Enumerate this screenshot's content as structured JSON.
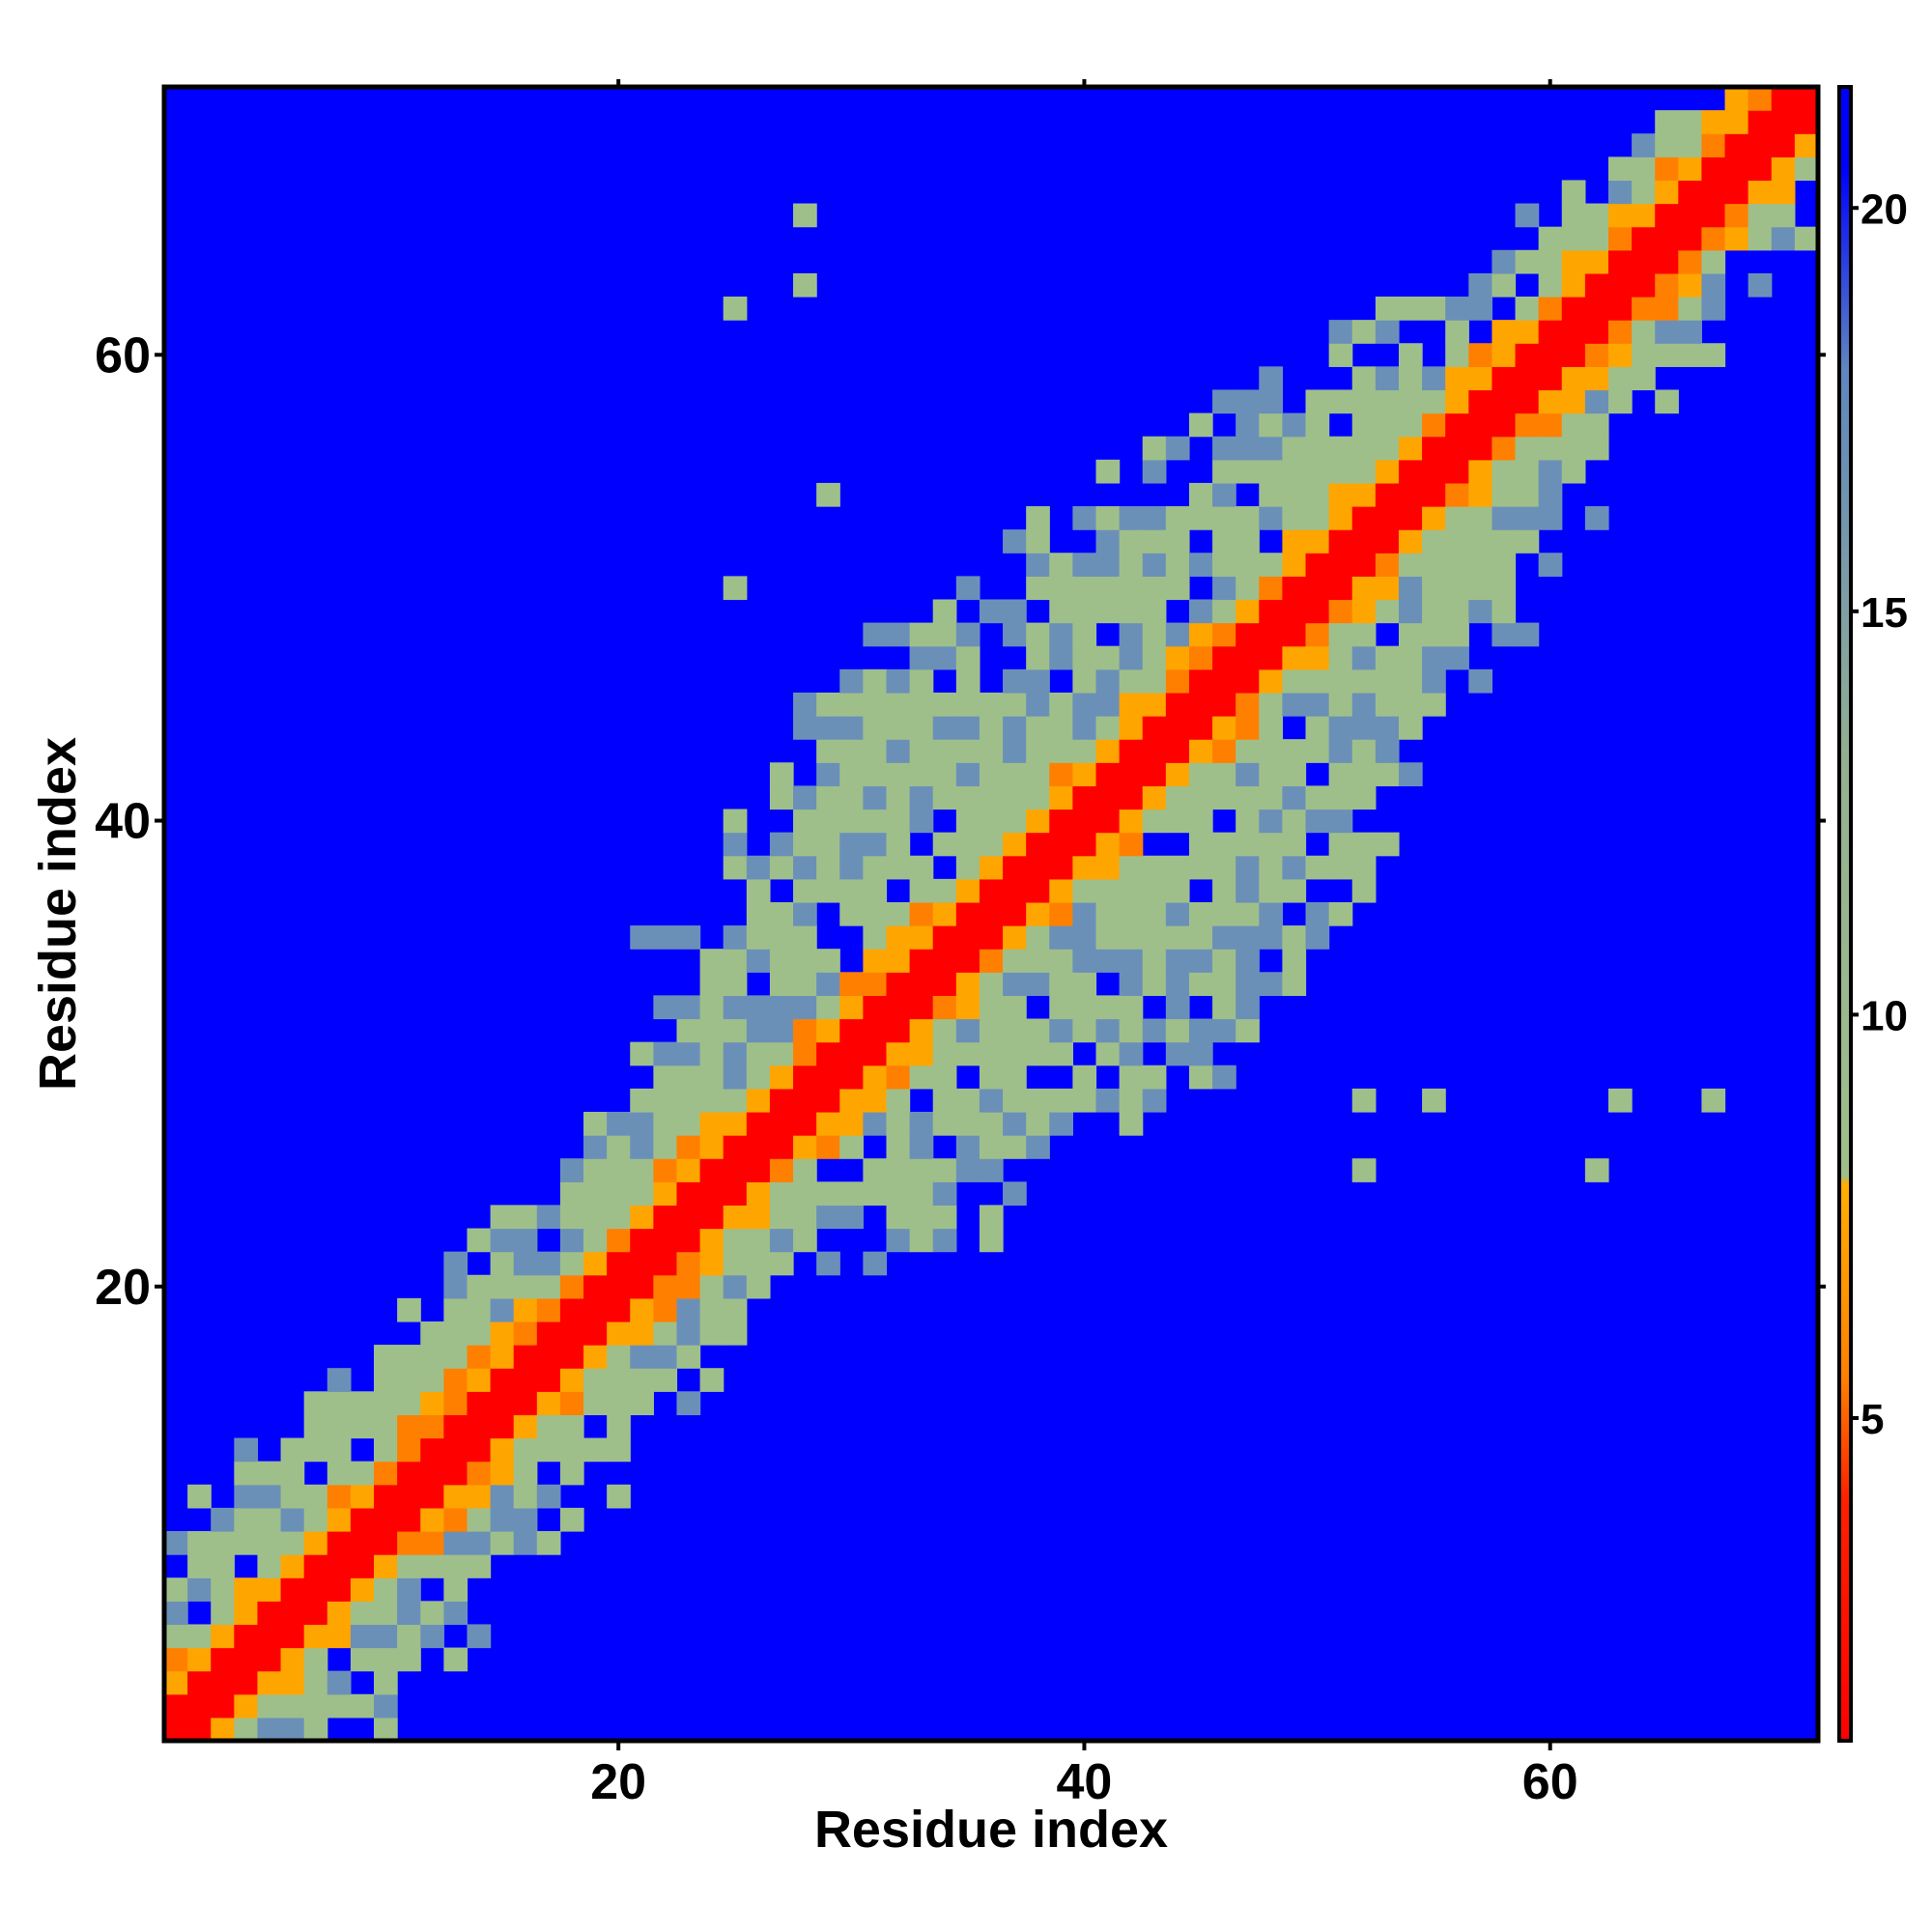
{
  "chart_data": {
    "type": "heatmap",
    "title": "",
    "xlabel": "Residue index",
    "ylabel": "Residue index",
    "n_residues": 71,
    "xlim": [
      1,
      71
    ],
    "ylim": [
      1,
      71
    ],
    "x_ticks": [
      20,
      40,
      60
    ],
    "y_ticks": [
      20,
      40,
      60
    ],
    "x_tick_labels": [
      "20",
      "40",
      "60"
    ],
    "y_tick_labels": [
      "20",
      "40",
      "60"
    ],
    "colorbar": {
      "ticks": [
        5,
        10,
        15,
        20
      ],
      "tick_labels": [
        "5",
        "10",
        "15",
        "20"
      ],
      "range": [
        1,
        21.5
      ],
      "position": "right",
      "stops": [
        {
          "value": 1,
          "color": "#ff0000"
        },
        {
          "value": 4,
          "color": "#ff2000"
        },
        {
          "value": 5.5,
          "color": "#ff8000"
        },
        {
          "value": 7.9,
          "color": "#ffae00"
        },
        {
          "value": 8,
          "color": "#9fbf8a"
        },
        {
          "value": 13,
          "color": "#94b090"
        },
        {
          "value": 18,
          "color": "#5f86c0"
        },
        {
          "value": 20.5,
          "color": "#0000ff"
        }
      ]
    },
    "colors": {
      "background_cell": "#0000ff",
      "diagonal": "#ff0000",
      "near": "#ff8000",
      "mid": "#ffa500",
      "far": "#9fbf8a",
      "edge": "#6b90b8"
    },
    "band_half_widths_by_residue": {
      "residues": [
        1,
        5,
        10,
        15,
        20,
        25,
        28,
        32,
        36,
        40,
        44,
        48,
        52,
        56,
        60,
        64,
        68,
        71
      ],
      "outer_half_width": [
        6,
        7,
        7,
        6,
        6,
        6,
        10,
        12,
        14,
        14,
        12,
        11,
        9,
        7,
        6,
        5,
        4,
        3
      ],
      "scatter_half_width": [
        8,
        9,
        9,
        8,
        8,
        9,
        14,
        16,
        17,
        17,
        16,
        14,
        12,
        10,
        8,
        7,
        6,
        4
      ]
    },
    "isolated_contacts": [
      [
        28,
        66
      ],
      [
        28,
        63
      ],
      [
        25,
        62
      ],
      [
        29,
        54
      ],
      [
        25,
        50
      ],
      [
        52,
        25
      ],
      [
        62,
        25
      ],
      [
        52,
        28
      ],
      [
        55,
        28
      ],
      [
        63,
        28
      ],
      [
        67,
        28
      ],
      [
        10,
        17
      ],
      [
        20,
        11
      ]
    ]
  }
}
